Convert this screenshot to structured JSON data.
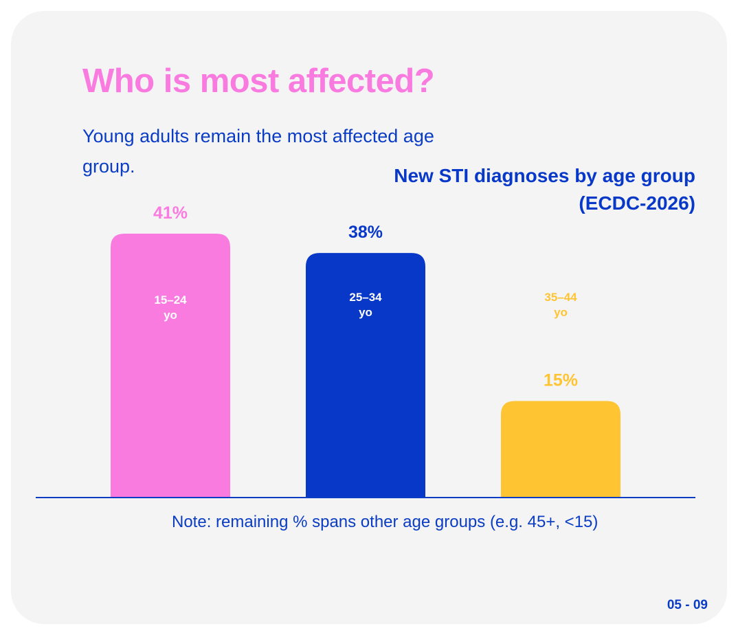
{
  "heading": {
    "title": "Who is most affected?",
    "subtitle": "Young adults remain the most affected age group."
  },
  "note": "Note: remaining % spans other age groups (e.g. 45+, <15)",
  "page_number": "05 - 09",
  "colors": {
    "background": "#f4f4f4",
    "accent_pink": "#f97be0",
    "accent_blue": "#0838c8",
    "accent_yellow": "#fec432"
  },
  "chart_data": {
    "type": "bar",
    "title": "New STI diagnoses by age group (ECDC-2026)",
    "categories": [
      "15–24 yo",
      "25–34 yo",
      "35–44 yo"
    ],
    "category_lines": [
      [
        "15–24",
        "yo"
      ],
      [
        "25–34",
        "yo"
      ],
      [
        "35–44",
        "yo"
      ]
    ],
    "values": [
      41,
      38,
      15
    ],
    "value_labels": [
      "41%",
      "38%",
      "15%"
    ],
    "bar_colors": [
      "#f97be0",
      "#0838c8",
      "#fec432"
    ],
    "category_label_colors": [
      "#ffffff",
      "#ffffff",
      "#fec432"
    ],
    "value_label_colors": [
      "#f97be0",
      "#0838c8",
      "#fec432"
    ],
    "ylim": [
      0,
      41
    ],
    "xlabel": "",
    "ylabel": "",
    "grid": false,
    "legend": "none"
  }
}
